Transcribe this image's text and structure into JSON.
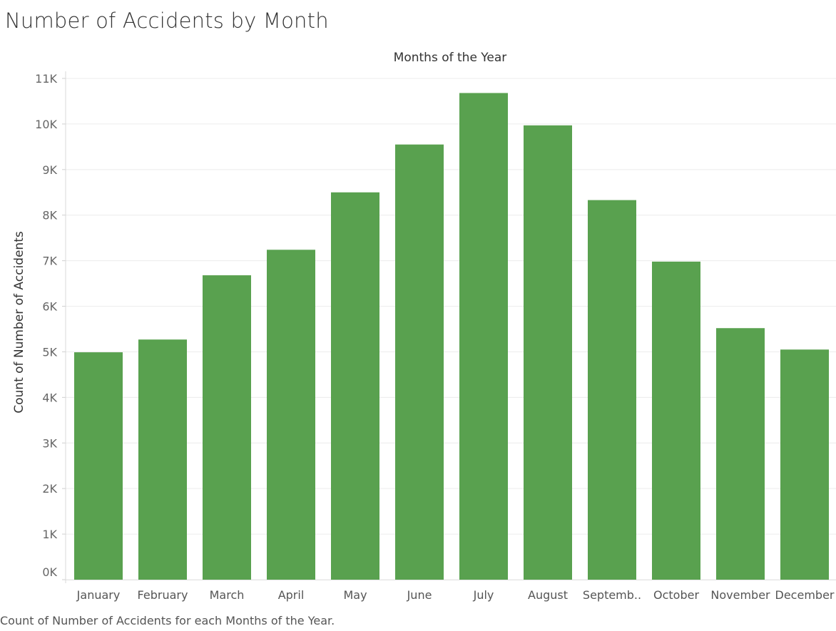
{
  "chart_data": {
    "type": "bar",
    "title": "Number of Accidents by Month",
    "xlabel": "Months of the Year",
    "ylabel": "Count of Number of Accidents",
    "caption": "Count of Number of Accidents for each Months of the Year.",
    "categories": [
      "January",
      "February",
      "March",
      "April",
      "May",
      "June",
      "July",
      "August",
      "September",
      "October",
      "November",
      "December"
    ],
    "category_labels": [
      "January",
      "February",
      "March",
      "April",
      "May",
      "June",
      "July",
      "August",
      "Septemb..",
      "October",
      "November",
      "December"
    ],
    "values": [
      4990,
      5270,
      6680,
      7240,
      8500,
      9550,
      10680,
      9970,
      8330,
      6980,
      5520,
      5050
    ],
    "ylim": [
      0,
      11000
    ],
    "yticks": [
      0,
      1000,
      2000,
      3000,
      4000,
      5000,
      6000,
      7000,
      8000,
      9000,
      10000,
      11000
    ],
    "ytick_labels": [
      "0K",
      "1K",
      "2K",
      "3K",
      "4K",
      "5K",
      "6K",
      "7K",
      "8K",
      "9K",
      "10K",
      "11K"
    ],
    "xlabel_position": "top",
    "grid": true,
    "legend": "none",
    "bar_color": "#59A14F"
  }
}
